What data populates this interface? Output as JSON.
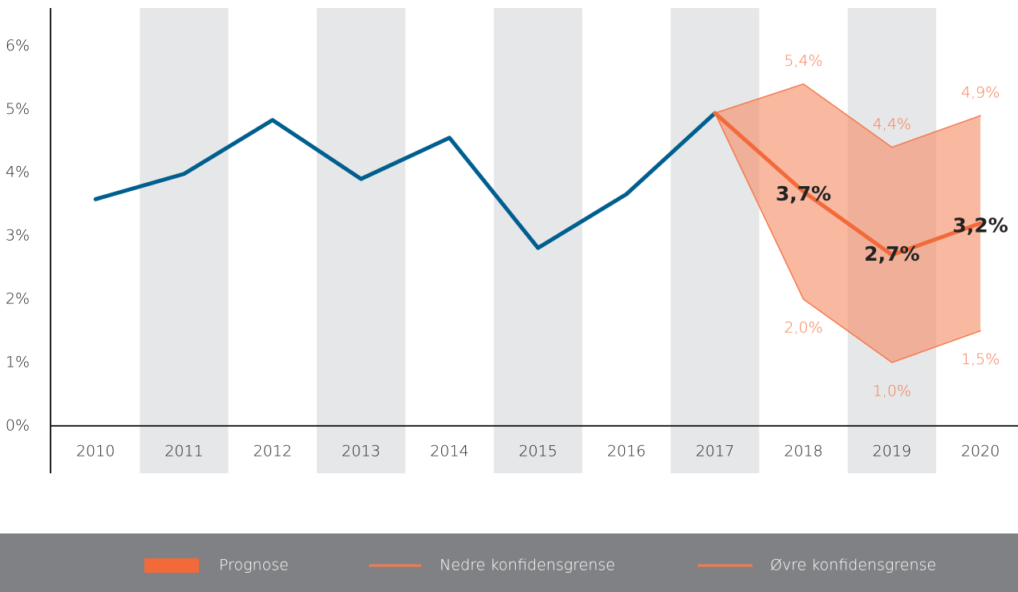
{
  "chart_data": {
    "type": "line",
    "categories": [
      "2010",
      "2011",
      "2012",
      "2013",
      "2014",
      "2015",
      "2016",
      "2017",
      "2018",
      "2019",
      "2020"
    ],
    "ylim": [
      -0.75,
      6.6
    ],
    "yticks": [
      {
        "value": 0,
        "label": "0%"
      },
      {
        "value": 1,
        "label": "1%"
      },
      {
        "value": 2,
        "label": "2%"
      },
      {
        "value": 3,
        "label": "3%"
      },
      {
        "value": 4,
        "label": "4%"
      },
      {
        "value": 5,
        "label": "5%"
      },
      {
        "value": 6,
        "label": "6%"
      }
    ],
    "band_color": "#e6e7e8",
    "legend_color": "#808184",
    "series": [
      {
        "color": "#005f8f",
        "values": [
          3.58,
          3.98,
          4.83,
          3.9,
          4.55,
          2.81,
          3.66,
          4.94,
          null,
          null,
          null
        ]
      },
      {
        "name": "Prognose",
        "color": "#f26a3a",
        "fill": "#f58a63",
        "values": [
          null,
          null,
          null,
          null,
          null,
          null,
          null,
          4.94,
          3.7,
          2.7,
          3.2
        ],
        "value_labels": [
          null,
          null,
          null,
          null,
          null,
          null,
          null,
          null,
          "3,7%",
          "2,7%",
          "3,2%"
        ]
      },
      {
        "name": "Nedre konfidensgrense",
        "color": "#f47a4e",
        "values": [
          null,
          null,
          null,
          null,
          null,
          null,
          null,
          4.94,
          2.0,
          1.0,
          1.5
        ],
        "value_labels": [
          null,
          null,
          null,
          null,
          null,
          null,
          null,
          null,
          "2,0%",
          "1,0%",
          "1,5%"
        ]
      },
      {
        "name": "Øvre konfidensgrense",
        "color": "#f47a4e",
        "values": [
          null,
          null,
          null,
          null,
          null,
          null,
          null,
          4.94,
          5.4,
          4.4,
          4.9
        ],
        "value_labels": [
          null,
          null,
          null,
          null,
          null,
          null,
          null,
          null,
          "5,4%",
          "4,4%",
          "4,9%"
        ]
      }
    ]
  }
}
